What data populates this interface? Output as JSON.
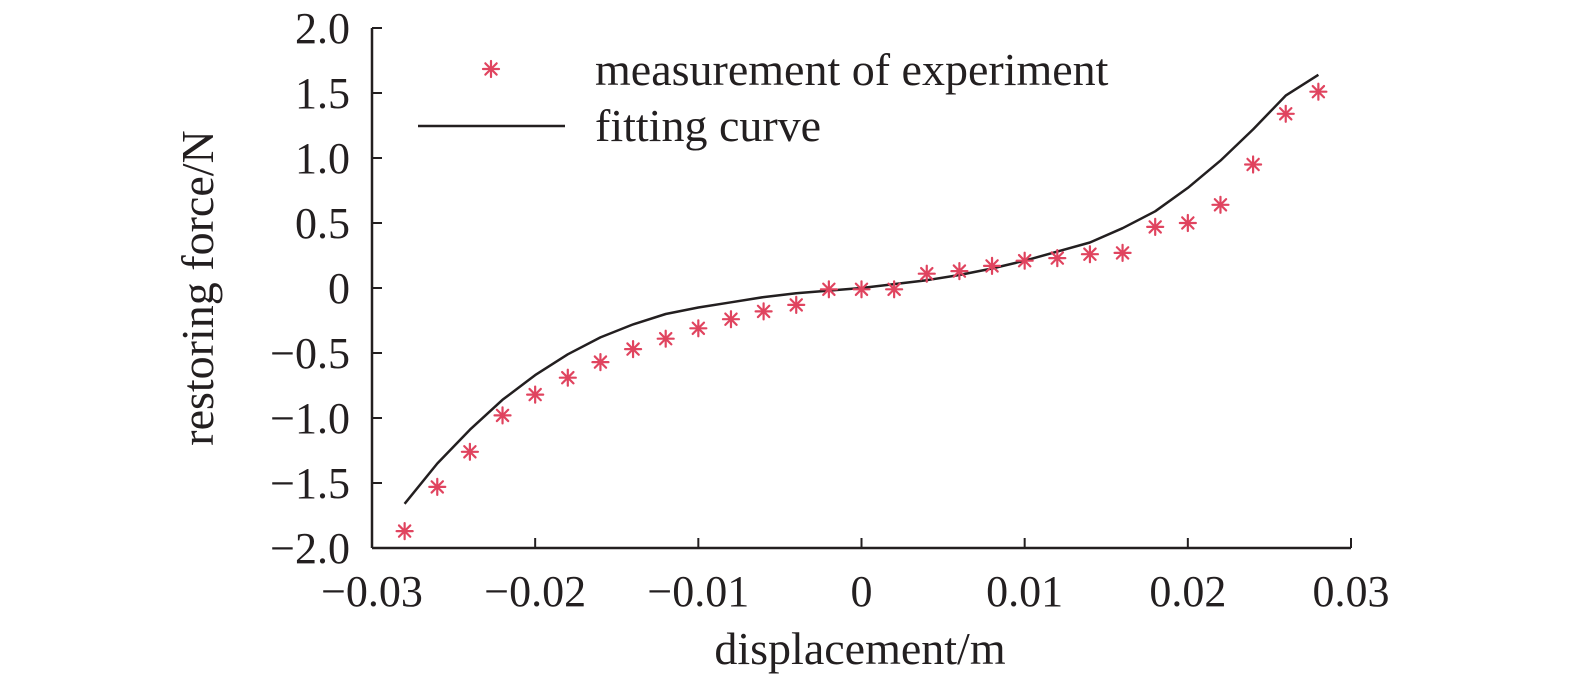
{
  "chart_data": {
    "type": "scatter",
    "xlabel": "displacement/m",
    "ylabel": "restoring force/N",
    "xlim": [
      -0.03,
      0.03
    ],
    "ylim": [
      -2.0,
      2.0
    ],
    "x_ticks": [
      -0.03,
      -0.02,
      -0.01,
      0,
      0.01,
      0.02,
      0.03
    ],
    "x_tick_labels": [
      "−0.03",
      "−0.02",
      "−0.01",
      "0",
      "0.01",
      "0.02",
      "0.03"
    ],
    "y_ticks": [
      2.0,
      1.5,
      1.0,
      0.5,
      0,
      -0.5,
      -1.0,
      -1.5,
      -2.0
    ],
    "y_tick_labels": [
      "2.0",
      "1.5",
      "1.0",
      "0.5",
      "0",
      "−0.5",
      "−1.0",
      "−1.5",
      "−2.0"
    ],
    "grid": false,
    "legend_position": "top-left",
    "series": [
      {
        "name": "measurement of experiment",
        "kind": "markers",
        "marker": "asterisk",
        "color": "#e0445f",
        "x": [
          -0.028,
          -0.026,
          -0.024,
          -0.022,
          -0.02,
          -0.018,
          -0.016,
          -0.014,
          -0.012,
          -0.01,
          -0.008,
          -0.006,
          -0.004,
          -0.002,
          0.0,
          0.002,
          0.004,
          0.006,
          0.008,
          0.01,
          0.012,
          0.014,
          0.016,
          0.018,
          0.02,
          0.022,
          0.024,
          0.026,
          0.028
        ],
        "y": [
          -1.87,
          -1.53,
          -1.26,
          -0.98,
          -0.82,
          -0.69,
          -0.57,
          -0.47,
          -0.39,
          -0.31,
          -0.24,
          -0.18,
          -0.13,
          -0.01,
          -0.01,
          -0.01,
          0.11,
          0.13,
          0.17,
          0.21,
          0.23,
          0.26,
          0.27,
          0.47,
          0.5,
          0.64,
          0.95,
          1.34,
          1.51
        ]
      },
      {
        "name": "fitting curve",
        "kind": "line",
        "color": "#231f20",
        "x": [
          -0.028,
          -0.026,
          -0.024,
          -0.022,
          -0.02,
          -0.018,
          -0.016,
          -0.014,
          -0.012,
          -0.01,
          -0.008,
          -0.006,
          -0.004,
          -0.002,
          0.0,
          0.002,
          0.004,
          0.006,
          0.008,
          0.01,
          0.012,
          0.014,
          0.016,
          0.018,
          0.02,
          0.022,
          0.024,
          0.026,
          0.028
        ],
        "y": [
          -1.66,
          -1.35,
          -1.09,
          -0.86,
          -0.67,
          -0.51,
          -0.38,
          -0.28,
          -0.2,
          -0.15,
          -0.11,
          -0.07,
          -0.04,
          -0.02,
          0.0,
          0.03,
          0.06,
          0.1,
          0.15,
          0.21,
          0.28,
          0.35,
          0.46,
          0.59,
          0.77,
          0.98,
          1.22,
          1.48,
          1.64
        ]
      }
    ]
  }
}
